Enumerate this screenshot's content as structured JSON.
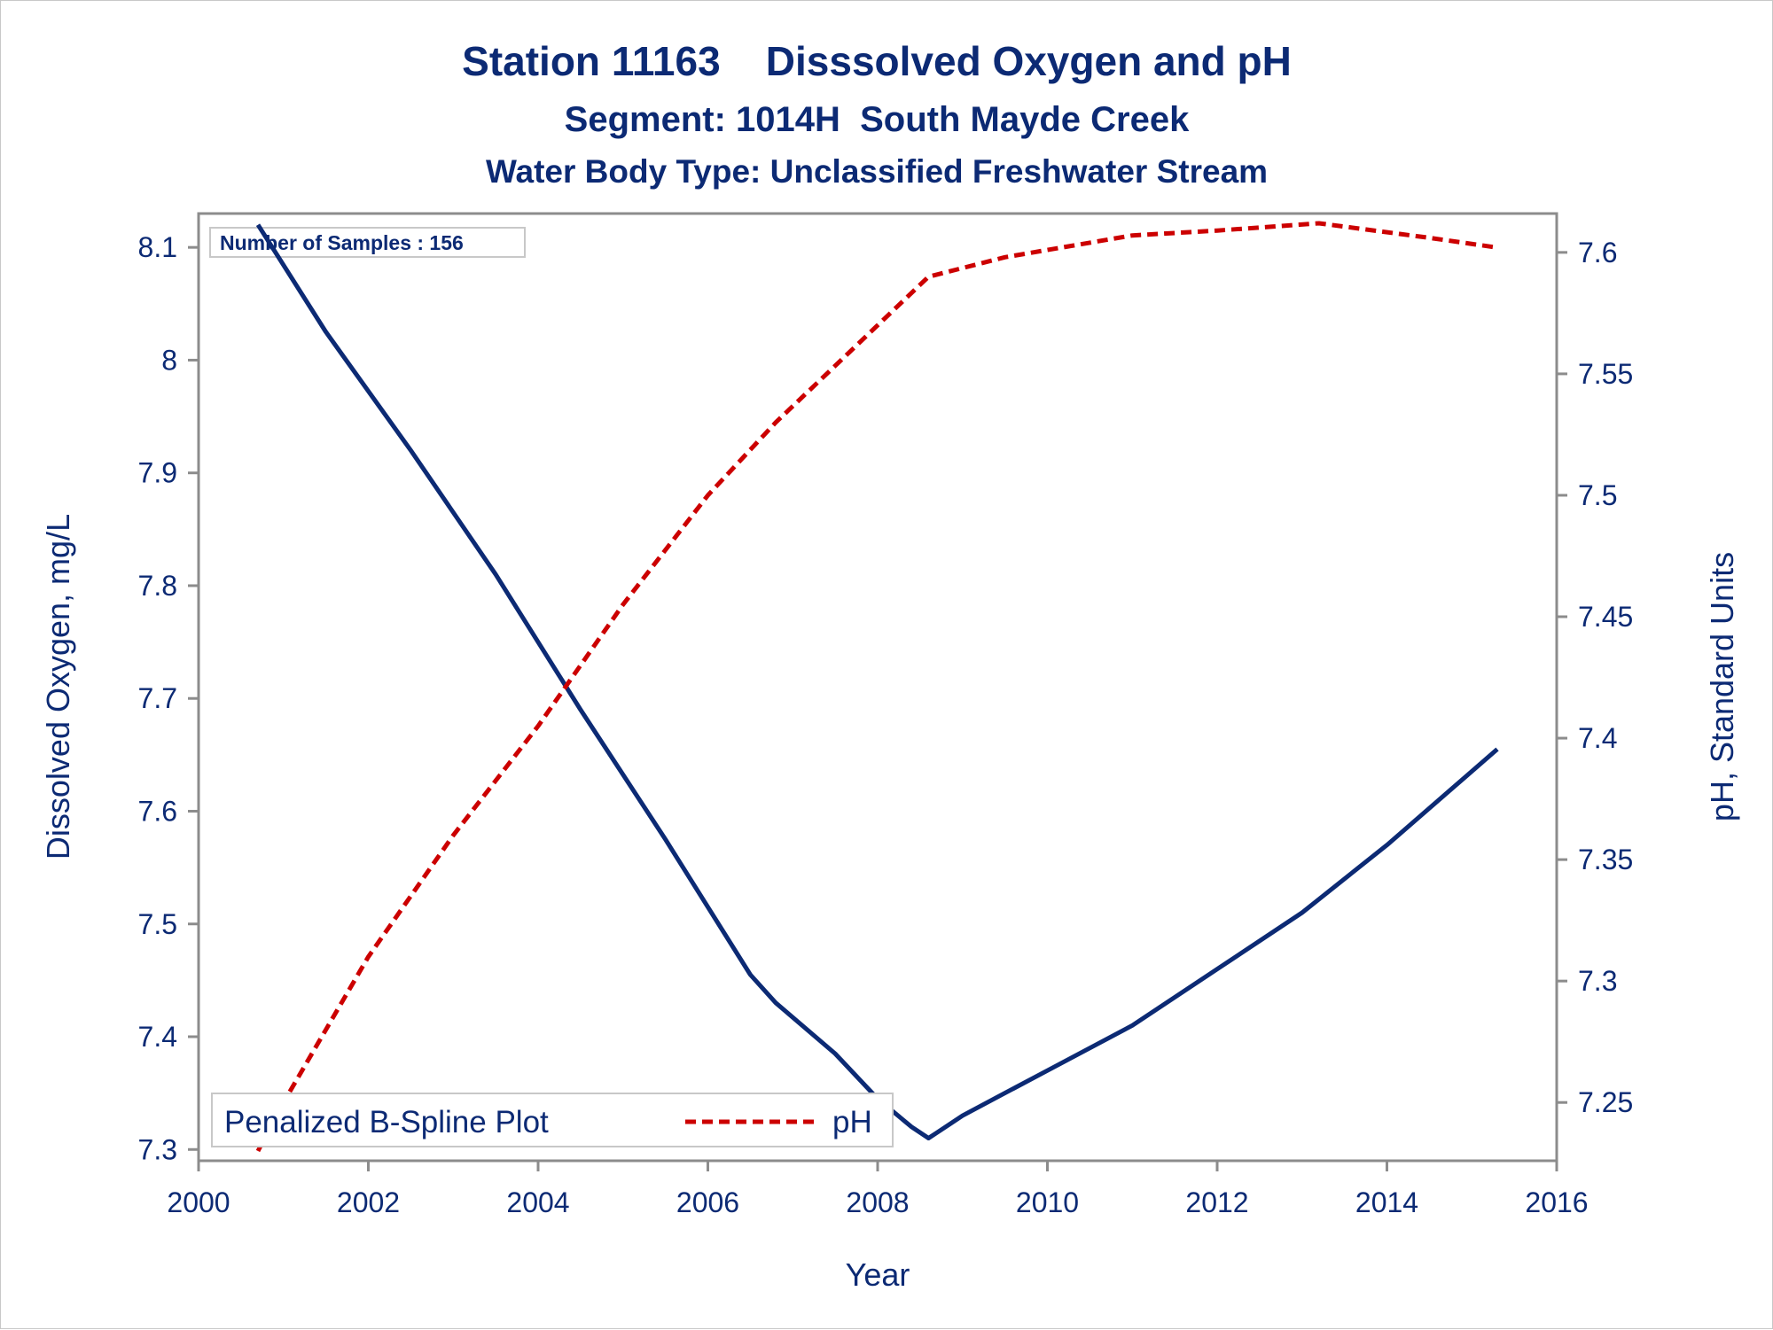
{
  "titles": {
    "line1": "Station 11163    Disssolved Oxygen and pH",
    "line2": "Segment: 1014H  South Mayde Creek",
    "line3": "Water Body Type: Unclassified Freshwater Stream"
  },
  "inset": {
    "text": "Number of Samples : 156"
  },
  "legend": {
    "title": "Penalized B-Spline Plot",
    "entry_label": "pH"
  },
  "colors": {
    "do_line": "#0c2a74",
    "ph_line": "#cc0000",
    "text": "#0c2a74",
    "axis": "#8c8c8c"
  },
  "chart_data": {
    "type": "line",
    "xlabel": "Year",
    "ylabel_left": "Dissolved Oxygen, mg/L",
    "ylabel_right": "pH, Standard Units",
    "x_ticks": [
      "2000",
      "2002",
      "2004",
      "2006",
      "2008",
      "2010",
      "2012",
      "2014",
      "2016"
    ],
    "y_left_ticks": [
      "7.3",
      "7.4",
      "7.5",
      "7.6",
      "7.7",
      "7.8",
      "7.9",
      "8",
      "8.1"
    ],
    "y_right_ticks": [
      "7.25",
      "7.3",
      "7.35",
      "7.4",
      "7.45",
      "7.5",
      "7.55",
      "7.6"
    ],
    "xlim": [
      2000,
      2016
    ],
    "ylim_left": [
      7.29,
      8.13
    ],
    "ylim_right": [
      7.226,
      7.616
    ],
    "grid": false,
    "legend_position": "bottom-left",
    "series": [
      {
        "axis": "left",
        "style": "solid",
        "x": [
          2000.7,
          2001.5,
          2002.5,
          2003.5,
          2004.5,
          2005.5,
          2006.5,
          2006.8,
          2007.5,
          2008.0,
          2008.4,
          2008.6,
          2008.7,
          2009.0,
          2009.5,
          2010.0,
          2011.0,
          2012.0,
          2013.0,
          2014.0,
          2015.3
        ],
        "y": [
          8.12,
          8.025,
          7.92,
          7.81,
          7.69,
          7.575,
          7.455,
          7.43,
          7.385,
          7.345,
          7.32,
          7.31,
          7.315,
          7.33,
          7.35,
          7.37,
          7.41,
          7.46,
          7.51,
          7.57,
          7.655
        ]
      },
      {
        "name": "pH",
        "axis": "right",
        "style": "dashed",
        "x": [
          2000.7,
          2001.0,
          2002.0,
          2003.0,
          2004.0,
          2005.0,
          2006.0,
          2006.8,
          2008.0,
          2008.6,
          2009.5,
          2011.0,
          2012.0,
          2013.2,
          2014.5,
          2015.3
        ],
        "y": [
          7.23,
          7.25,
          7.31,
          7.36,
          7.405,
          7.455,
          7.5,
          7.53,
          7.57,
          7.59,
          7.598,
          7.607,
          7.609,
          7.612,
          7.606,
          7.602
        ]
      }
    ]
  }
}
